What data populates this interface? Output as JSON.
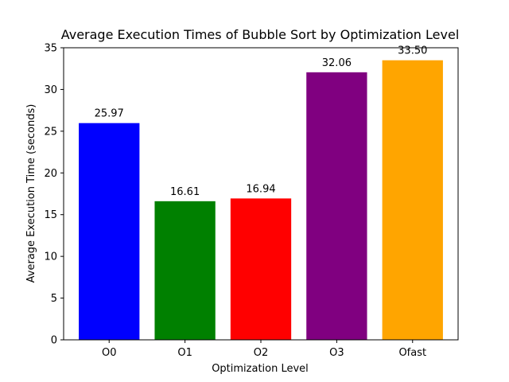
{
  "chart_data": {
    "type": "bar",
    "title": "Average Execution Times of Bubble Sort by Optimization Level",
    "xlabel": "Optimization Level",
    "ylabel": "Average Execution Time (seconds)",
    "categories": [
      "O0",
      "O1",
      "O2",
      "O3",
      "Ofast"
    ],
    "values": [
      25.97,
      16.61,
      16.94,
      32.06,
      33.5
    ],
    "data_labels": [
      "25.97",
      "16.61",
      "16.94",
      "32.06",
      "33.50"
    ],
    "colors": [
      "#0000ff",
      "#008000",
      "#ff0000",
      "#800080",
      "#ffa500"
    ],
    "ylim": [
      0,
      35
    ],
    "yticks": [
      0,
      5,
      10,
      15,
      20,
      25,
      30,
      35
    ],
    "grid": false,
    "legend": "none"
  }
}
